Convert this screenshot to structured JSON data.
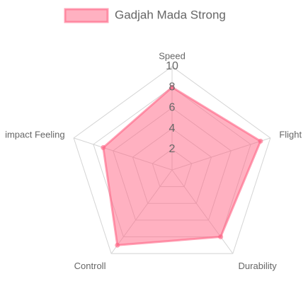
{
  "chart_data": {
    "type": "radar",
    "categories": [
      "Speed",
      "Flight",
      "Durability",
      "Controll",
      "impact Feeling"
    ],
    "series": [
      {
        "name": "Gadjah Mada Strong",
        "color": "#ff6384",
        "values": [
          8,
          9,
          8,
          9,
          7
        ]
      }
    ],
    "ylim": [
      0,
      10
    ],
    "yticks": [
      2,
      4,
      6,
      8,
      10
    ],
    "grid": true,
    "legend": "top"
  }
}
